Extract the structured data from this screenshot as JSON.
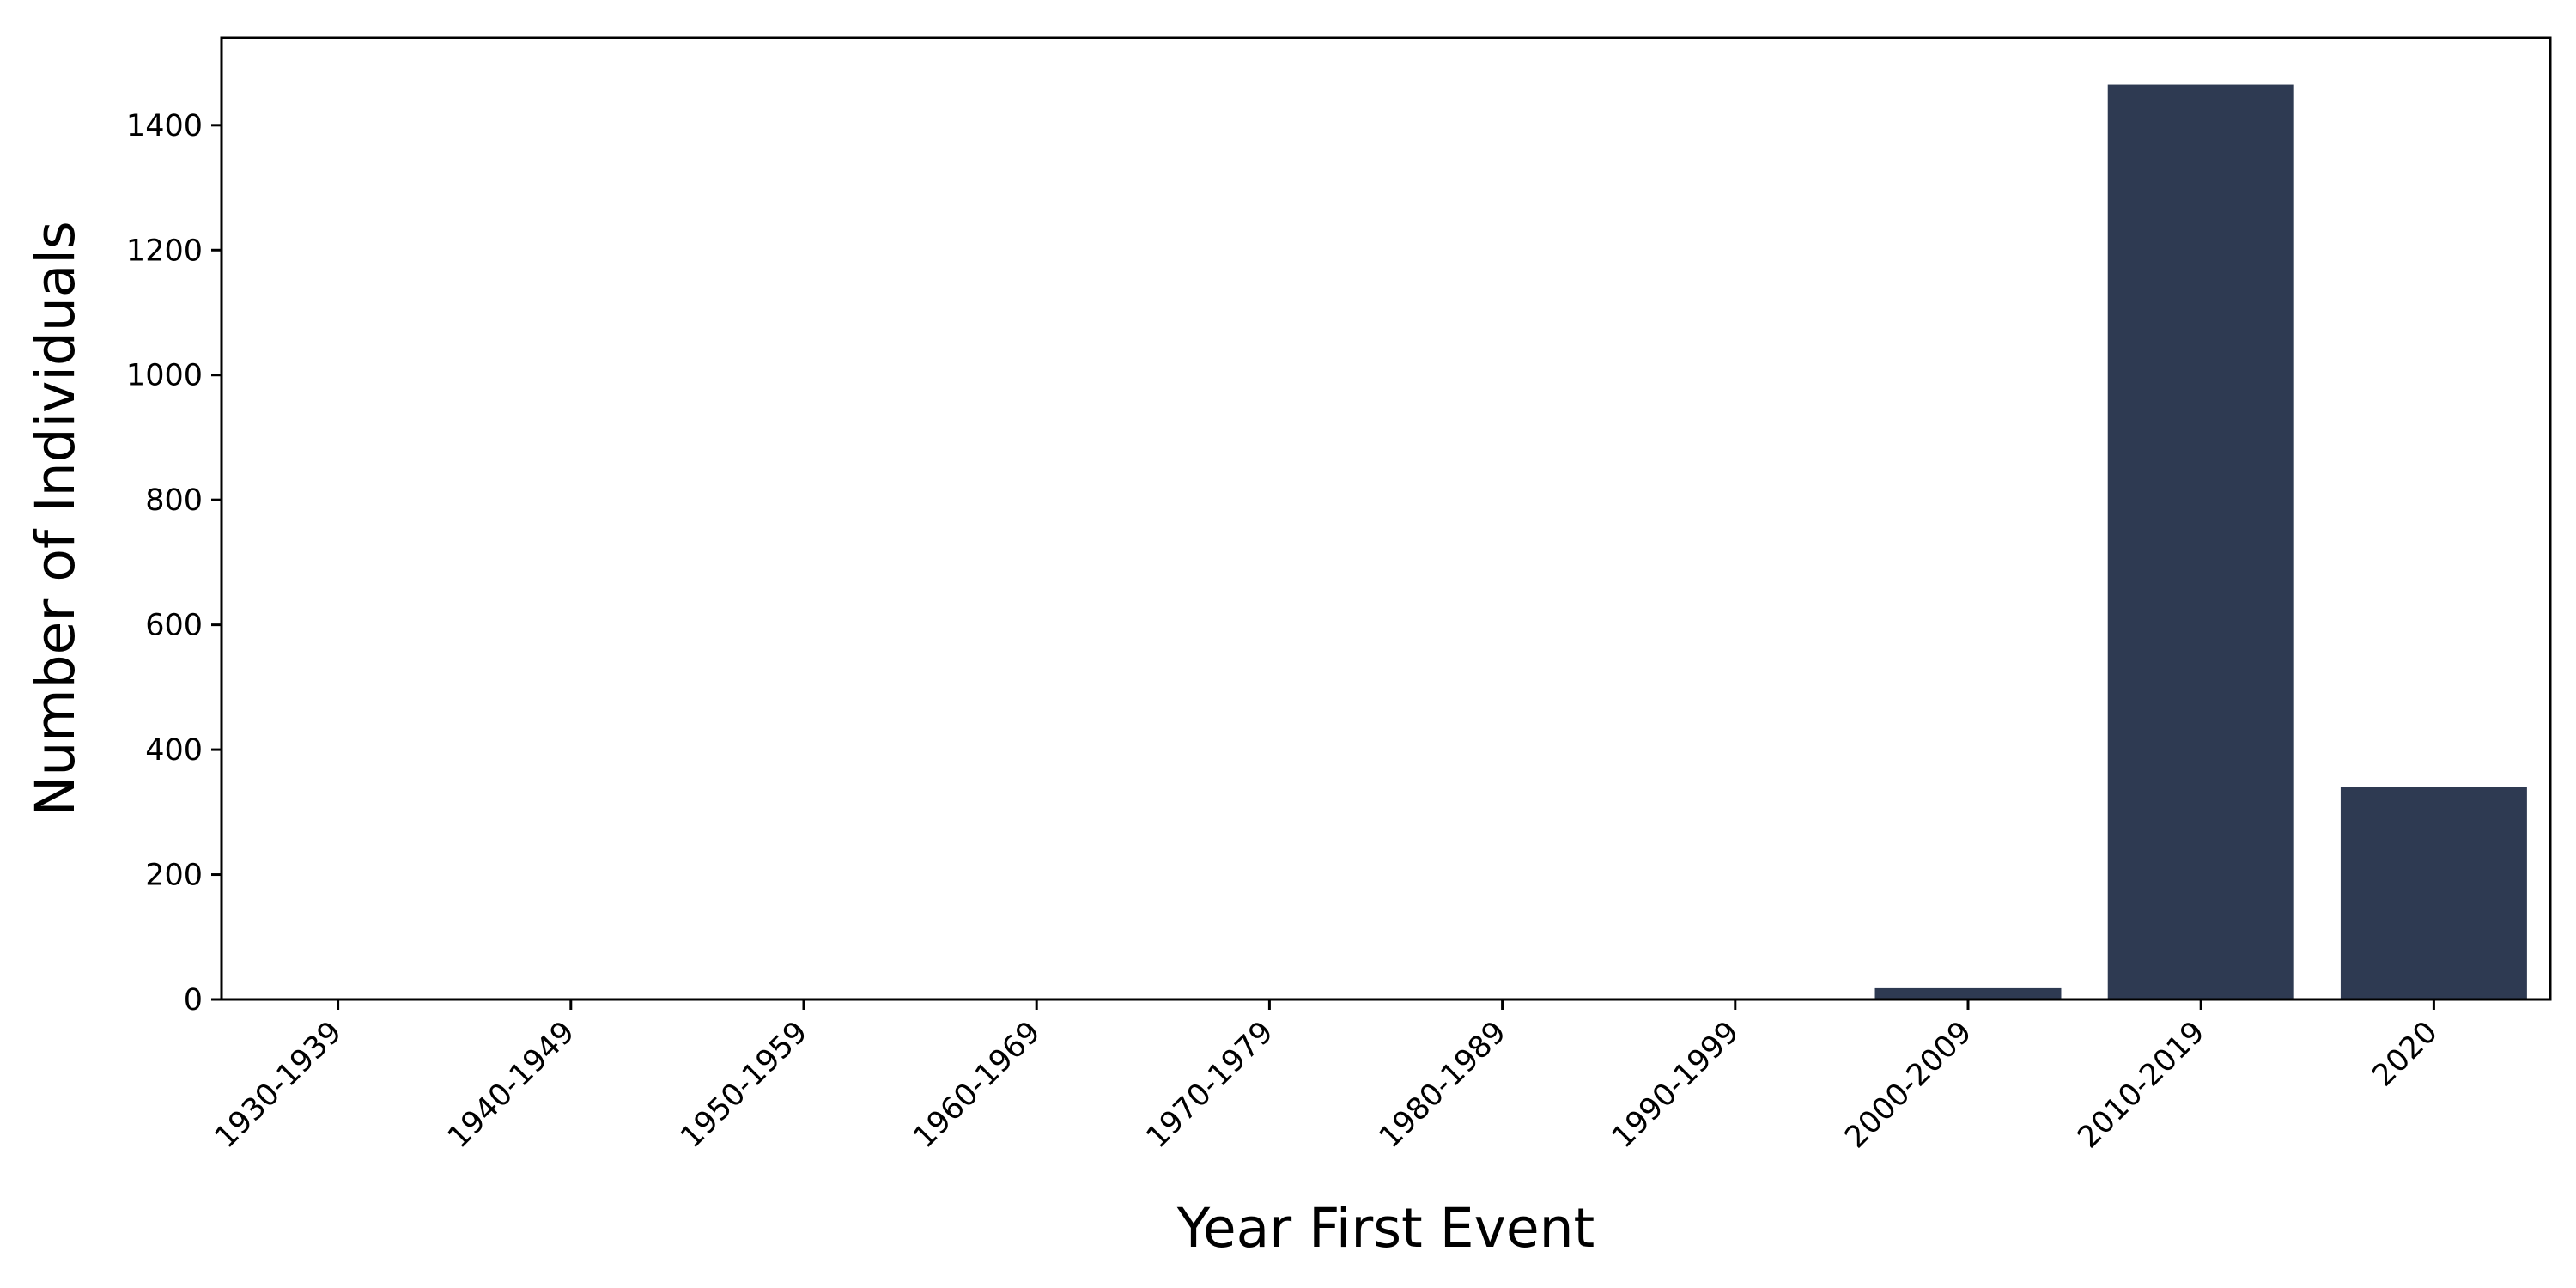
{
  "chart_data": {
    "type": "bar",
    "title": "",
    "xlabel": "Year First Event",
    "ylabel": "Number of Individuals",
    "categories": [
      "1930-1939",
      "1940-1949",
      "1950-1959",
      "1960-1969",
      "1970-1979",
      "1980-1989",
      "1990-1999",
      "2000-2009",
      "2010-2019",
      "2020"
    ],
    "values": [
      0,
      0,
      0,
      0,
      0,
      0,
      0,
      18,
      1465,
      340
    ],
    "ylim": [
      0,
      1540
    ],
    "yticks": [
      0,
      200,
      400,
      600,
      800,
      1000,
      1200,
      1400
    ],
    "bar_color": "#2e3a52",
    "grid": false,
    "legend": "none"
  }
}
